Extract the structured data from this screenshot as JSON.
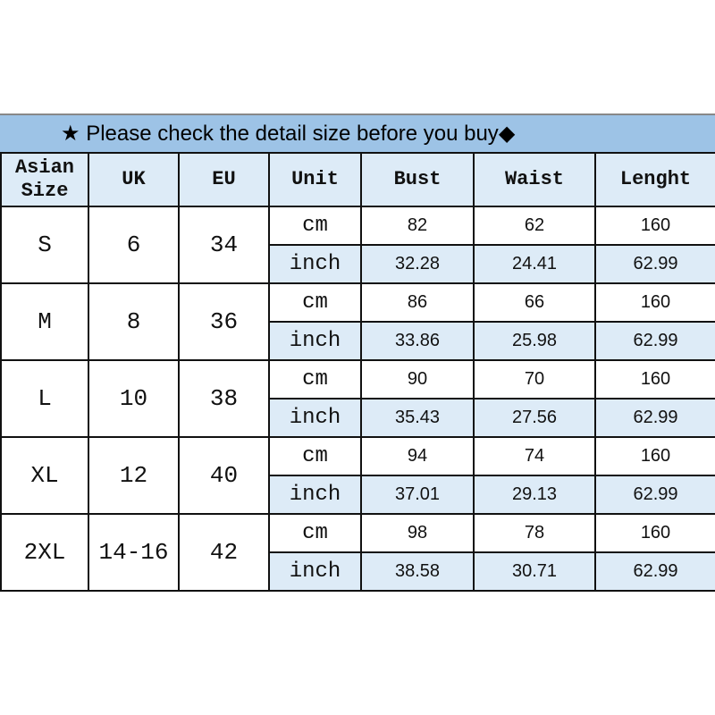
{
  "banner": {
    "star_icon": "★",
    "text": "Please check the detail size before you buy",
    "diamond_icon": "◆"
  },
  "colors": {
    "banner": "#9dc3e6",
    "header": "#ddebf7",
    "inch_row": "#ddebf7"
  },
  "headers": [
    "Asian Size",
    "UK",
    "EU",
    "Unit",
    "Bust",
    "Waist",
    "Lenght"
  ],
  "rows": [
    {
      "asian": "S",
      "uk": "6",
      "eu": "34",
      "cm": {
        "unit": "cm",
        "bust": "82",
        "waist": "62",
        "length": "160"
      },
      "inch": {
        "unit": "inch",
        "bust": "32.28",
        "waist": "24.41",
        "length": "62.99"
      }
    },
    {
      "asian": "M",
      "uk": "8",
      "eu": "36",
      "cm": {
        "unit": "cm",
        "bust": "86",
        "waist": "66",
        "length": "160"
      },
      "inch": {
        "unit": "inch",
        "bust": "33.86",
        "waist": "25.98",
        "length": "62.99"
      }
    },
    {
      "asian": "L",
      "uk": "10",
      "eu": "38",
      "cm": {
        "unit": "cm",
        "bust": "90",
        "waist": "70",
        "length": "160"
      },
      "inch": {
        "unit": "inch",
        "bust": "35.43",
        "waist": "27.56",
        "length": "62.99"
      }
    },
    {
      "asian": "XL",
      "uk": "12",
      "eu": "40",
      "cm": {
        "unit": "cm",
        "bust": "94",
        "waist": "74",
        "length": "160"
      },
      "inch": {
        "unit": "inch",
        "bust": "37.01",
        "waist": "29.13",
        "length": "62.99"
      }
    },
    {
      "asian": "2XL",
      "uk": "14-16",
      "eu": "42",
      "cm": {
        "unit": "cm",
        "bust": "98",
        "waist": "78",
        "length": "160"
      },
      "inch": {
        "unit": "inch",
        "bust": "38.58",
        "waist": "30.71",
        "length": "62.99"
      }
    }
  ]
}
